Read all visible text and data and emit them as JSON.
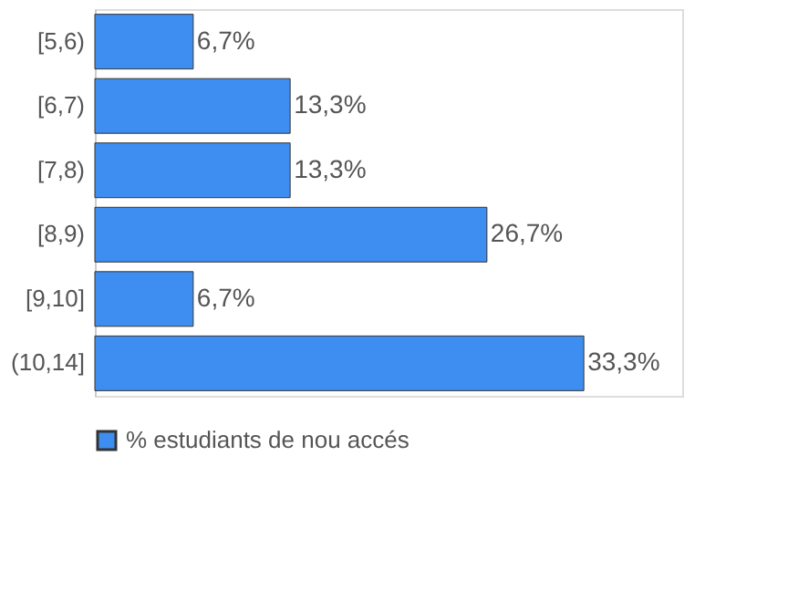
{
  "chart_data": {
    "type": "bar",
    "orientation": "horizontal",
    "categories": [
      "[5,6)",
      "[6,7)",
      "[7,8)",
      "[8,9)",
      "[9,10]",
      "(10,14]"
    ],
    "series": [
      {
        "name": "% estudiants de nou accés",
        "color": "#3d8ef0",
        "values": [
          6.7,
          13.3,
          13.3,
          26.7,
          6.7,
          33.3
        ],
        "value_labels": [
          "6,7%",
          "13,3%",
          "13,3%",
          "26,7%",
          "6,7%",
          "33,3%"
        ]
      }
    ],
    "xlim": [
      0,
      40
    ],
    "tick_labels": "y",
    "legend": "bottom"
  }
}
